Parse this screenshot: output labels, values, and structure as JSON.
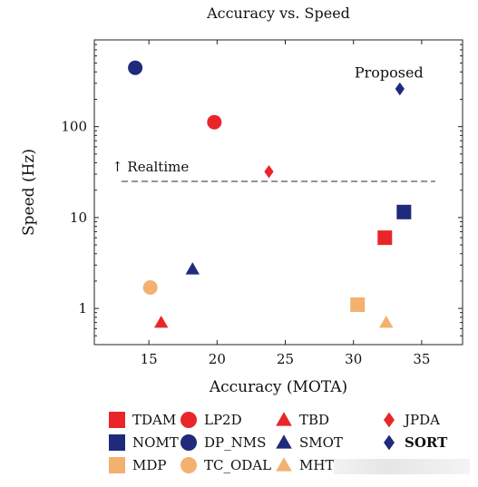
{
  "chart_data": {
    "type": "scatter",
    "title": "Accuracy vs. Speed",
    "xlabel": "Accuracy (MOTA)",
    "ylabel": "Speed (Hz)",
    "xlim": [
      11,
      38
    ],
    "ylim": [
      0.4,
      900
    ],
    "yscale": "log",
    "xticks": [
      15,
      20,
      25,
      30,
      35
    ],
    "yticks": [
      1,
      10,
      100
    ],
    "ytick_labels": [
      "1",
      "10",
      "100"
    ],
    "grid": false,
    "legend_position": "bottom",
    "realtime_line": {
      "y": 25,
      "x_range": [
        13,
        36
      ],
      "label": "↑ Realtime"
    },
    "annotation": {
      "text": "Proposed",
      "x": 32.6,
      "y": 390
    },
    "series": [
      {
        "name": "TDAM",
        "marker": "square",
        "color": "#e8262a",
        "x": 32.3,
        "y": 6.0
      },
      {
        "name": "NOMT",
        "marker": "square",
        "color": "#1f2a7c",
        "x": 33.7,
        "y": 11.5
      },
      {
        "name": "MDP",
        "marker": "square",
        "color": "#f4b06e",
        "x": 30.3,
        "y": 1.1
      },
      {
        "name": "LP2D",
        "marker": "circle",
        "color": "#e8262a",
        "x": 19.8,
        "y": 112
      },
      {
        "name": "DP_NMS",
        "marker": "circle",
        "color": "#1f2a7c",
        "x": 14.0,
        "y": 444
      },
      {
        "name": "TC_ODAL",
        "marker": "circle",
        "color": "#f4b06e",
        "x": 15.1,
        "y": 1.7
      },
      {
        "name": "TBD",
        "marker": "triangle",
        "color": "#e8262a",
        "x": 15.9,
        "y": 0.7
      },
      {
        "name": "SMOT",
        "marker": "triangle",
        "color": "#1f2a7c",
        "x": 18.2,
        "y": 2.7
      },
      {
        "name": "MHT_",
        "marker": "triangle",
        "color": "#f4b06e",
        "x": 32.4,
        "y": 0.7
      },
      {
        "name": "JPDA",
        "marker": "diamond",
        "color": "#e8262a",
        "x": 23.8,
        "y": 32
      },
      {
        "name": "SORT",
        "marker": "diamond",
        "color": "#1f2a7c",
        "x": 33.4,
        "y": 260,
        "bold": true
      }
    ]
  }
}
